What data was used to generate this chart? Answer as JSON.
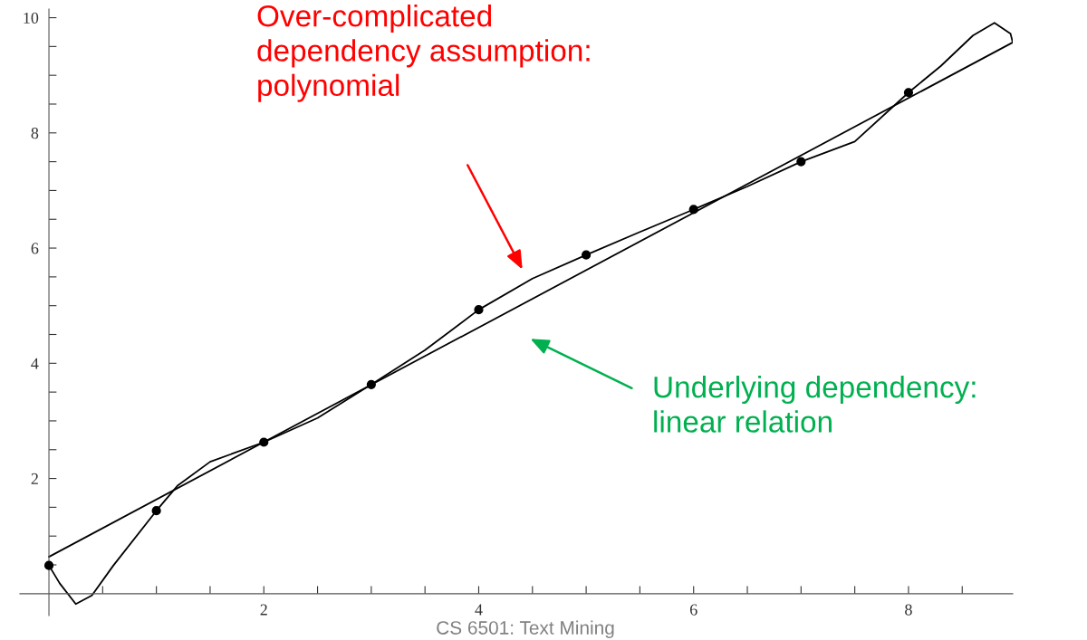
{
  "chart_data": {
    "type": "line",
    "xlim": [
      -0.27,
      8.97
    ],
    "ylim": [
      -0.38,
      10.15
    ],
    "xticks": [
      {
        "value": 0.5,
        "label": null
      },
      {
        "value": 1,
        "label": null
      },
      {
        "value": 1.5,
        "label": null
      },
      2,
      {
        "value": 2.5,
        "label": null
      },
      {
        "value": 3,
        "label": null
      },
      {
        "value": 3.5,
        "label": null
      },
      4,
      {
        "value": 4.5,
        "label": null
      },
      {
        "value": 5,
        "label": null
      },
      {
        "value": 5.5,
        "label": null
      },
      6,
      {
        "value": 6.5,
        "label": null
      },
      {
        "value": 7,
        "label": null
      },
      {
        "value": 7.5,
        "label": null
      },
      8,
      {
        "value": 8.5,
        "label": null
      }
    ],
    "yticks": [
      {
        "value": 0.5,
        "label": null
      },
      {
        "value": 1,
        "label": null
      },
      {
        "value": 1.5,
        "label": null
      },
      2,
      {
        "value": 2.5,
        "label": null
      },
      {
        "value": 3,
        "label": null
      },
      {
        "value": 3.5,
        "label": null
      },
      4,
      {
        "value": 4.5,
        "label": null
      },
      {
        "value": 5,
        "label": null
      },
      {
        "value": 5.5,
        "label": null
      },
      6,
      {
        "value": 6.5,
        "label": null
      },
      {
        "value": 7,
        "label": null
      },
      {
        "value": 7.5,
        "label": null
      },
      8,
      {
        "value": 8.5,
        "label": null
      },
      {
        "value": 9,
        "label": null
      },
      {
        "value": 9.5,
        "label": null
      },
      10
    ],
    "grid": false,
    "series": [
      {
        "color": "#000000",
        "x": [
          0,
          0.1,
          0.25,
          0.4,
          0.6,
          1,
          1.2,
          1.5,
          2,
          2.5,
          3,
          3.5,
          4,
          4.5,
          5,
          5.5,
          6,
          6.5,
          7,
          7.5,
          8,
          8.3,
          8.6,
          8.8,
          8.95,
          8.97
        ],
        "values": [
          0.49,
          0.18,
          -0.18,
          -0.03,
          0.49,
          1.44,
          1.88,
          2.29,
          2.63,
          3.05,
          3.63,
          4.23,
          4.93,
          5.47,
          5.88,
          6.28,
          6.67,
          7.07,
          7.5,
          7.85,
          8.7,
          9.16,
          9.69,
          9.91,
          9.72,
          9.57
        ]
      },
      {
        "color": "#000000",
        "x": [
          0,
          8.97
        ],
        "values": [
          0.64,
          9.57
        ]
      },
      {
        "type": "scatter",
        "color": "#000000",
        "x": [
          0,
          1,
          2,
          3,
          4,
          5,
          6,
          7,
          8
        ],
        "values": [
          0.49,
          1.44,
          2.63,
          3.63,
          4.93,
          5.88,
          6.67,
          7.5,
          8.7
        ]
      }
    ],
    "annotations": [
      "Over-complicated\ndependency assumption:\npolynomial",
      "Underlying dependency:\nlinear relation",
      "CS 6501: Text Mining"
    ]
  }
}
